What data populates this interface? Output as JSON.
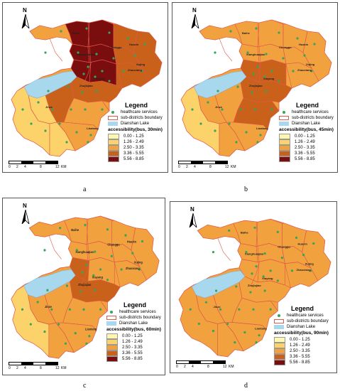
{
  "north_label": "N",
  "scale": {
    "ticks": [
      "0",
      "2",
      "4",
      "8",
      "12"
    ],
    "unit": "KM"
  },
  "legend_common": {
    "title": "Legend",
    "healthcare": "healthcare services",
    "boundary": "sub-districts boundary",
    "lake": "Dianshan Lake"
  },
  "classes": [
    "0.00 - 1.25",
    "1.26 - 2.49",
    "2.50 - 3.35",
    "3.36 - 5.55",
    "5.56 - 8.85"
  ],
  "class_colors": [
    "#fff7b0",
    "#fcd36b",
    "#f1a23f",
    "#c9611a",
    "#7a0d0d"
  ],
  "colors": {
    "lake": "#a8d8ee",
    "boundary": "#e05a4a",
    "healthcare": "#3aa35b",
    "frame": "#555555"
  },
  "place_names": [
    "Baihe",
    "Chonggu",
    "Huaxin",
    "Xianghuaqiao",
    "Xujing",
    "Zhaoxiang",
    "Xiayang",
    "Zhujiajiao",
    "Jinze",
    "Liantang"
  ],
  "panels": [
    {
      "id": "a",
      "caption": "a",
      "accessibility_title": "accessibility(bus, 30min)"
    },
    {
      "id": "b",
      "caption": "b",
      "accessibility_title": "accessibility(bus, 45min)"
    },
    {
      "id": "c",
      "caption": "c",
      "accessibility_title": "accessibility(bus, 60min)"
    },
    {
      "id": "d",
      "caption": "d",
      "accessibility_title": "accessibility(bus, 90min)"
    }
  ]
}
